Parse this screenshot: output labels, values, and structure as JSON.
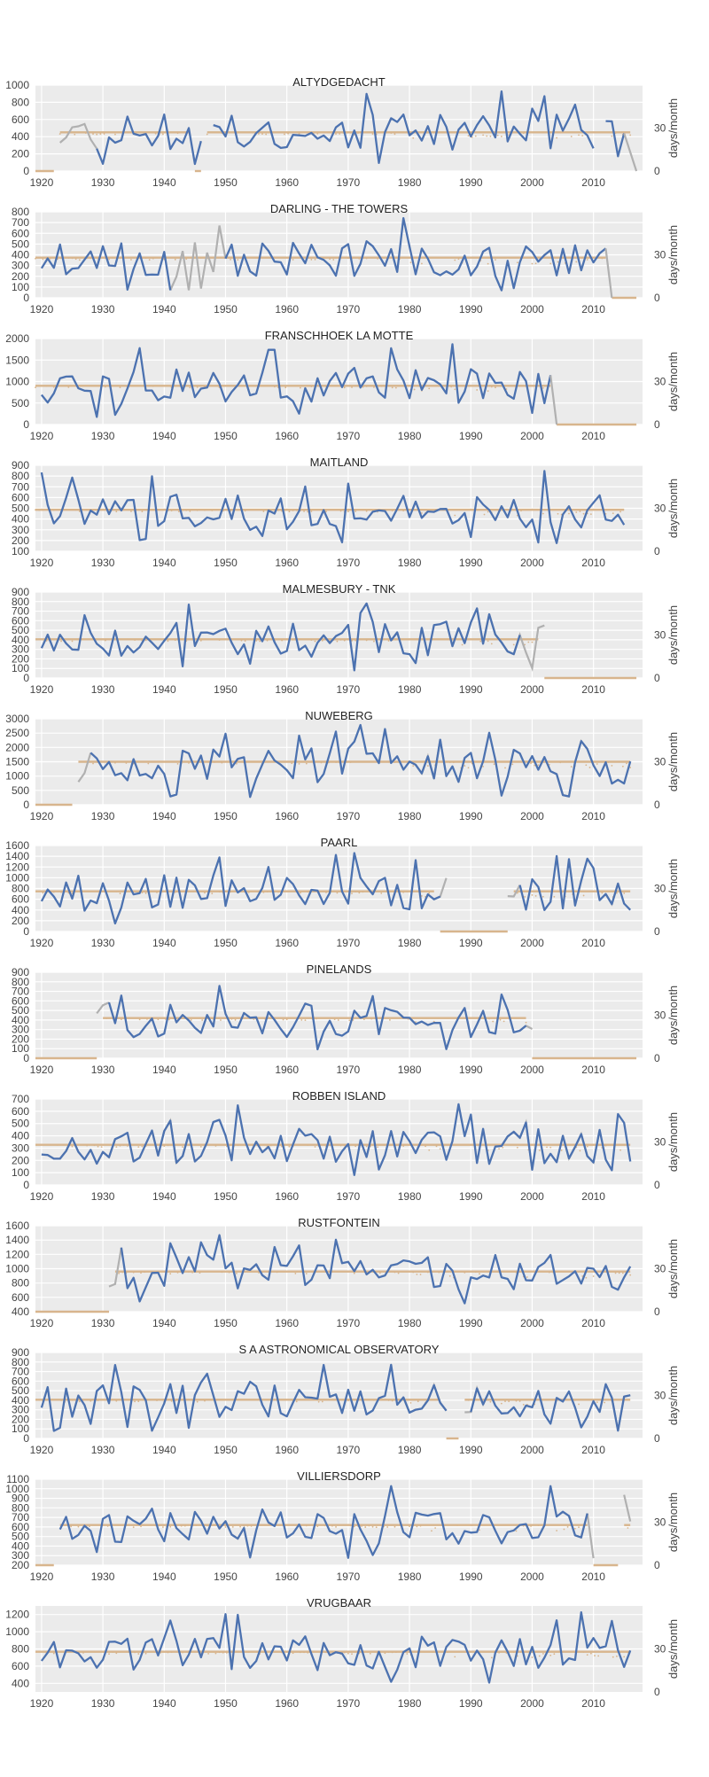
{
  "colors": {
    "background": "#ffffff",
    "panel": "#ebebeb",
    "grid": "#ffffff",
    "main_line": "#4c72b0",
    "filled_line": "#b0b0b0",
    "days_line": "#d8b58d",
    "text": "#444444"
  },
  "chart_data": {
    "type": "line",
    "right_axis_label": "days/month",
    "right_axis_ticks": [
      0,
      30
    ],
    "x_ticks": [
      1920,
      1930,
      1940,
      1950,
      1960,
      1970,
      1980,
      1990,
      2000,
      2010
    ],
    "xlim": [
      1919,
      2018
    ],
    "grid": true,
    "panels": [
      {
        "title": "ALTYDGEDACHT",
        "y_ticks": [
          0,
          200,
          400,
          600,
          800,
          1000
        ],
        "ylim": [
          0,
          1000
        ],
        "seed": 11,
        "gray": [
          [
            1923,
            1929
          ]
        ],
        "blue": [
          [
            1929,
            1946
          ],
          [
            1948,
            2010
          ],
          [
            2012,
            2015
          ]
        ],
        "gray_after": [
          2015,
          2017
        ],
        "days": [
          [
            1919,
            1922,
            0
          ],
          [
            1923,
            1944,
            27
          ],
          [
            1945,
            1946,
            0
          ],
          [
            1947,
            2016,
            27
          ]
        ]
      },
      {
        "title": "DARLING - THE TOWERS",
        "y_ticks": [
          0,
          100,
          200,
          300,
          400,
          500,
          600,
          700,
          800
        ],
        "ylim": [
          0,
          800
        ],
        "seed": 23,
        "gray": [
          [
            1941,
            1950
          ]
        ],
        "blue": [
          [
            1919,
            1941
          ],
          [
            1950,
            2012
          ]
        ],
        "gray_after": [
          2012,
          2013
        ],
        "days": [
          [
            1919,
            2012,
            28
          ],
          [
            2013,
            2017,
            0
          ]
        ]
      },
      {
        "title": "FRANSCHHOEK LA MOTTE",
        "y_ticks": [
          0,
          500,
          1000,
          1500,
          2000
        ],
        "ylim": [
          0,
          2000
        ],
        "seed": 37,
        "gray": [],
        "blue": [
          [
            1919,
            2003
          ]
        ],
        "gray_after": [
          2003,
          2004
        ],
        "days": [
          [
            1919,
            2003,
            27
          ],
          [
            2004,
            2017,
            0
          ]
        ]
      },
      {
        "title": "MAITLAND",
        "y_ticks": [
          100,
          200,
          300,
          400,
          500,
          600,
          700,
          800,
          900
        ],
        "ylim": [
          100,
          900
        ],
        "seed": 41,
        "gray": [],
        "blue": [
          [
            1919,
            2015
          ]
        ],
        "gray_after": null,
        "days": [
          [
            1919,
            2015,
            29
          ]
        ]
      },
      {
        "title": "MALMESBURY - TNK",
        "y_ticks": [
          0,
          100,
          200,
          300,
          400,
          500,
          600,
          700,
          800,
          900
        ],
        "ylim": [
          0,
          900
        ],
        "seed": 53,
        "gray": [
          [
            1991,
            2002
          ]
        ],
        "blue": [
          [
            1919,
            1998
          ]
        ],
        "gray_after": null,
        "days": [
          [
            1919,
            2001,
            27
          ],
          [
            2002,
            2017,
            0
          ]
        ]
      },
      {
        "title": "NUWEBERG",
        "y_ticks": [
          0,
          500,
          1000,
          1500,
          2000,
          2500,
          3000
        ],
        "ylim": [
          0,
          3000
        ],
        "seed": 67,
        "gray": [
          [
            1926,
            1928
          ],
          [
            1981,
            1986
          ],
          [
            2004,
            2009
          ]
        ],
        "blue": [
          [
            1928,
            2016
          ]
        ],
        "gray_after": null,
        "days": [
          [
            1919,
            1925,
            0
          ],
          [
            1926,
            2016,
            30
          ]
        ]
      },
      {
        "title": "PAARL",
        "y_ticks": [
          0,
          200,
          400,
          600,
          800,
          1000,
          1200,
          1400,
          1600
        ],
        "ylim": [
          0,
          1600
        ],
        "seed": 79,
        "gray": [
          [
            1984,
            1986
          ],
          [
            1996,
            1998
          ],
          [
            2012,
            2014
          ]
        ],
        "blue": [
          [
            1919,
            1985
          ],
          [
            1998,
            2016
          ]
        ],
        "gray_after": null,
        "days": [
          [
            1919,
            1984,
            28
          ],
          [
            1985,
            1996,
            0
          ],
          [
            1997,
            2016,
            28
          ]
        ]
      },
      {
        "title": "PINELANDS",
        "y_ticks": [
          0,
          100,
          200,
          300,
          400,
          500,
          600,
          700,
          800,
          900
        ],
        "ylim": [
          0,
          900
        ],
        "seed": 83,
        "gray": [
          [
            1929,
            1931
          ],
          [
            1998,
            2000
          ]
        ],
        "blue": [
          [
            1931,
            1999
          ]
        ],
        "gray_after": null,
        "days": [
          [
            1919,
            1929,
            0
          ],
          [
            1930,
            1999,
            28
          ],
          [
            2000,
            2017,
            0
          ]
        ]
      },
      {
        "title": "ROBBEN ISLAND",
        "y_ticks": [
          0,
          100,
          200,
          300,
          400,
          500,
          600,
          700
        ],
        "ylim": [
          0,
          700
        ],
        "seed": 97,
        "gray": [
          [
            1921,
            1925
          ],
          [
            1929,
            1933
          ],
          [
            1938,
            1944
          ],
          [
            1995,
            2000
          ],
          [
            2005,
            2011
          ]
        ],
        "blue": [
          [
            1919,
            2016
          ]
        ],
        "gray_after": null,
        "days": [
          [
            1919,
            2016,
            28
          ]
        ]
      },
      {
        "title": "RUSTFONTEIN",
        "y_ticks": [
          400,
          600,
          800,
          1000,
          1200,
          1400,
          1600
        ],
        "ylim": [
          400,
          1600
        ],
        "seed": 101,
        "gray": [
          [
            1931,
            1933
          ]
        ],
        "blue": [
          [
            1933,
            2016
          ]
        ],
        "gray_after": null,
        "days": [
          [
            1919,
            1931,
            0
          ],
          [
            1932,
            2016,
            28
          ]
        ]
      },
      {
        "title": "S A ASTRONOMICAL OBSERVATORY",
        "y_ticks": [
          0,
          100,
          200,
          300,
          400,
          500,
          600,
          700,
          800,
          900
        ],
        "ylim": [
          0,
          900
        ],
        "seed": 113,
        "gray": [
          [
            1979,
            1986
          ],
          [
            1989,
            1993
          ],
          [
            2012,
            2016
          ]
        ],
        "blue": [
          [
            1919,
            1986
          ],
          [
            1990,
            2016
          ]
        ],
        "gray_after": null,
        "days": [
          [
            1919,
            1985,
            27
          ],
          [
            1986,
            1988,
            0
          ],
          [
            1989,
            2016,
            27
          ]
        ]
      },
      {
        "title": "VILLIERSDORP",
        "y_ticks": [
          200,
          300,
          400,
          500,
          600,
          700,
          800,
          900,
          1000,
          1100
        ],
        "ylim": [
          200,
          1100
        ],
        "seed": 127,
        "gray": [
          [
            1951,
            1955
          ],
          [
            2006,
            2010
          ],
          [
            2015,
            2016
          ]
        ],
        "blue": [
          [
            1923,
            2009
          ]
        ],
        "gray_after": null,
        "days": [
          [
            1919,
            1922,
            0
          ],
          [
            1923,
            2009,
            28
          ],
          [
            2010,
            2014,
            0
          ],
          [
            2015,
            2016,
            28
          ]
        ]
      },
      {
        "title": "VRUGBAAR",
        "y_ticks": [
          400,
          600,
          800,
          1000,
          1200
        ],
        "ylim": [
          300,
          1300
        ],
        "seed": 131,
        "gray": [],
        "blue": [
          [
            1919,
            2016
          ]
        ],
        "gray_after": null,
        "days": [
          [
            1919,
            2016,
            28
          ]
        ]
      }
    ]
  }
}
